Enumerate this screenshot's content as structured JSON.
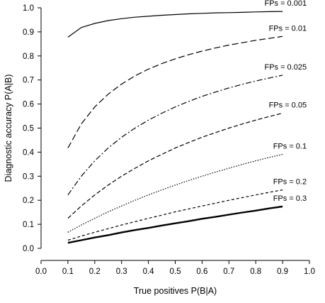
{
  "chart_data": {
    "type": "line",
    "title": "",
    "xlabel": "True positives P(B|A)",
    "ylabel": "Diagnostic accuracy P(A|B)",
    "xlim": [
      0.0,
      1.0
    ],
    "ylim": [
      0.0,
      1.0
    ],
    "x_ticks": [
      "0.0",
      "0.1",
      "0.2",
      "0.3",
      "0.4",
      "0.5",
      "0.6",
      "0.7",
      "0.8",
      "0.9",
      "1.0"
    ],
    "y_ticks": [
      "0.0",
      "0.1",
      "0.2",
      "0.3",
      "0.4",
      "0.5",
      "0.6",
      "0.7",
      "0.8",
      "0.9",
      "1.0"
    ],
    "grid": false,
    "legend": "none",
    "x": [
      0.1,
      0.15,
      0.2,
      0.25,
      0.3,
      0.35,
      0.4,
      0.45,
      0.5,
      0.55,
      0.6,
      0.65,
      0.7,
      0.75,
      0.8,
      0.85,
      0.9
    ],
    "series": [
      {
        "name": "FPs = 0.001",
        "line_style": "solid",
        "values": [
          0.878,
          0.918,
          0.935,
          0.947,
          0.955,
          0.961,
          0.965,
          0.969,
          0.972,
          0.975,
          0.977,
          0.979,
          0.98,
          0.981,
          0.983,
          0.984,
          0.985
        ]
      },
      {
        "name": "FPs = 0.01",
        "line_style": "longdash",
        "values": [
          0.417,
          0.517,
          0.588,
          0.641,
          0.683,
          0.717,
          0.745,
          0.768,
          0.788,
          0.805,
          0.82,
          0.833,
          0.845,
          0.855,
          0.865,
          0.873,
          0.881
        ]
      },
      {
        "name": "FPs = 0.025",
        "line_style": "dashdot",
        "values": [
          0.222,
          0.3,
          0.364,
          0.417,
          0.462,
          0.5,
          0.533,
          0.562,
          0.588,
          0.611,
          0.632,
          0.65,
          0.667,
          0.682,
          0.696,
          0.708,
          0.72
        ]
      },
      {
        "name": "FPs = 0.05",
        "line_style": "dashed",
        "values": [
          0.125,
          0.176,
          0.222,
          0.263,
          0.3,
          0.333,
          0.364,
          0.391,
          0.417,
          0.44,
          0.462,
          0.481,
          0.5,
          0.517,
          0.533,
          0.548,
          0.562
        ]
      },
      {
        "name": "FPs = 0.1",
        "line_style": "dotted",
        "values": [
          0.067,
          0.097,
          0.125,
          0.152,
          0.176,
          0.2,
          0.222,
          0.243,
          0.263,
          0.282,
          0.3,
          0.317,
          0.333,
          0.349,
          0.364,
          0.378,
          0.391
        ]
      },
      {
        "name": "FPs = 0.2",
        "line_style": "shortdash",
        "values": [
          0.034,
          0.051,
          0.067,
          0.082,
          0.097,
          0.111,
          0.125,
          0.138,
          0.152,
          0.164,
          0.176,
          0.188,
          0.2,
          0.211,
          0.222,
          0.233,
          0.243
        ]
      },
      {
        "name": "FPs = 0.3",
        "line_style": "bold",
        "values": [
          0.023,
          0.034,
          0.045,
          0.055,
          0.066,
          0.076,
          0.085,
          0.095,
          0.104,
          0.113,
          0.123,
          0.131,
          0.14,
          0.149,
          0.157,
          0.166,
          0.174
        ]
      }
    ]
  }
}
